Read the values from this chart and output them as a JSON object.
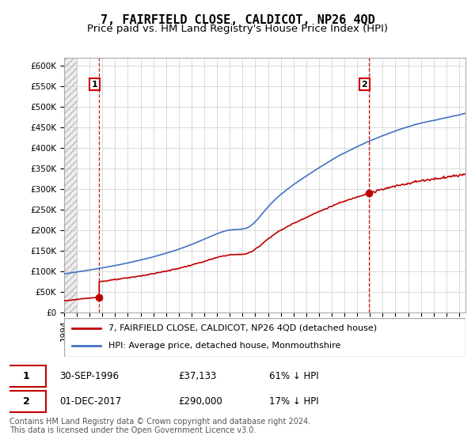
{
  "title": "7, FAIRFIELD CLOSE, CALDICOT, NP26 4QD",
  "subtitle": "Price paid vs. HM Land Registry's House Price Index (HPI)",
  "ylim": [
    0,
    620000
  ],
  "yticks": [
    0,
    50000,
    100000,
    150000,
    200000,
    250000,
    300000,
    350000,
    400000,
    450000,
    500000,
    550000,
    600000
  ],
  "ytick_labels": [
    "£0",
    "£50K",
    "£100K",
    "£150K",
    "£200K",
    "£250K",
    "£300K",
    "£350K",
    "£400K",
    "£450K",
    "£500K",
    "£550K",
    "£600K"
  ],
  "xlim_start": 1994.0,
  "xlim_end": 2025.5,
  "sale1_date": 1996.75,
  "sale1_price": 37133,
  "sale1_label": "1",
  "sale2_date": 2017.92,
  "sale2_price": 290000,
  "sale2_label": "2",
  "legend_line1": "7, FAIRFIELD CLOSE, CALDICOT, NP26 4QD (detached house)",
  "legend_line2": "HPI: Average price, detached house, Monmouthshire",
  "table_row1": [
    "1",
    "30-SEP-1996",
    "£37,133",
    "61% ↓ HPI"
  ],
  "table_row2": [
    "2",
    "01-DEC-2017",
    "£290,000",
    "17% ↓ HPI"
  ],
  "footer": "Contains HM Land Registry data © Crown copyright and database right 2024.\nThis data is licensed under the Open Government Licence v3.0.",
  "hpi_color": "#4472c4",
  "price_color": "#c00000",
  "vline_color": "#cc0000",
  "grid_color": "#cccccc",
  "title_fontsize": 11,
  "subtitle_fontsize": 9.5
}
